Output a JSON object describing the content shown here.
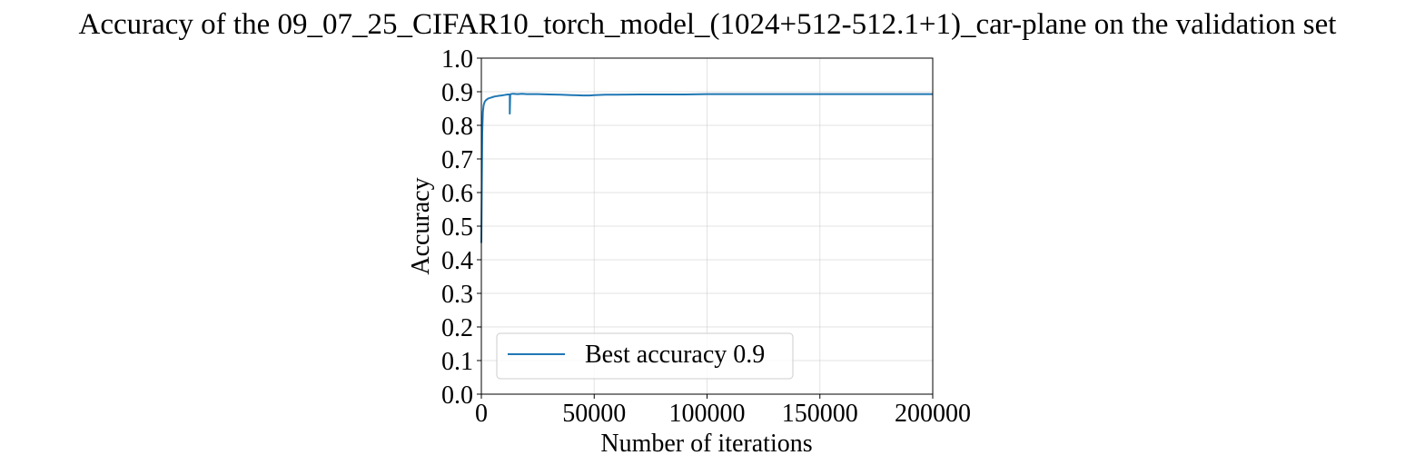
{
  "chart_data": {
    "type": "line",
    "title": "Accuracy of the 09_07_25_CIFAR10_torch_model_(1024+512-512.1+1)_car-plane on the validation set",
    "xlabel": "Number of iterations",
    "ylabel": "Accuracy",
    "xlim": [
      0,
      200000
    ],
    "ylim": [
      0.0,
      1.0
    ],
    "xticks": [
      0,
      50000,
      100000,
      150000,
      200000
    ],
    "xtick_labels": [
      "0",
      "50000",
      "100000",
      "150000",
      "200000"
    ],
    "yticks": [
      0.0,
      0.1,
      0.2,
      0.3,
      0.4,
      0.5,
      0.6,
      0.7,
      0.8,
      0.9,
      1.0
    ],
    "ytick_labels": [
      "0.0",
      "0.1",
      "0.2",
      "0.3",
      "0.4",
      "0.5",
      "0.6",
      "0.7",
      "0.8",
      "0.9",
      "1.0"
    ],
    "grid": true,
    "legend_position": "lower-left",
    "series": [
      {
        "name": "Best accuracy 0.9",
        "color": "#1f77b4",
        "x": [
          0,
          200,
          400,
          700,
          1000,
          1500,
          2000,
          3000,
          4000,
          5000,
          6000,
          7000,
          8000,
          9000,
          10000,
          11000,
          12000,
          12600,
          12600,
          12800,
          13000,
          14000,
          16000,
          18000,
          20000,
          25000,
          30000,
          35000,
          40000,
          45000,
          48000,
          50000,
          55000,
          60000,
          70000,
          80000,
          90000,
          100000,
          120000,
          140000,
          160000,
          180000,
          200000
        ],
        "y": [
          0.45,
          0.62,
          0.78,
          0.84,
          0.86,
          0.87,
          0.875,
          0.88,
          0.882,
          0.884,
          0.886,
          0.887,
          0.888,
          0.889,
          0.89,
          0.891,
          0.892,
          0.892,
          0.835,
          0.892,
          0.893,
          0.894,
          0.893,
          0.894,
          0.893,
          0.893,
          0.892,
          0.891,
          0.89,
          0.889,
          0.889,
          0.89,
          0.891,
          0.891,
          0.892,
          0.892,
          0.892,
          0.893,
          0.893,
          0.893,
          0.893,
          0.893,
          0.893
        ]
      }
    ]
  }
}
